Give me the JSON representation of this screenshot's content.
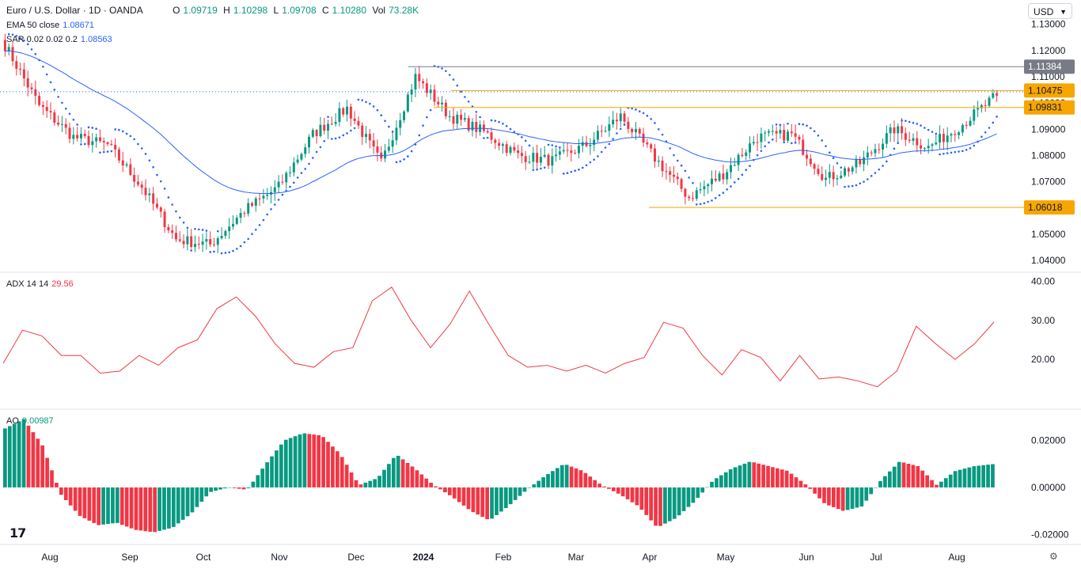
{
  "header": {
    "symbol": "Euro / U.S. Dollar · 1D · OANDA",
    "ohlc": {
      "o_label": "O",
      "o": "1.09719",
      "h_label": "H",
      "h": "1.10298",
      "l_label": "L",
      "l": "1.09708",
      "c_label": "C",
      "c": "1.10280",
      "vol_label": "Vol",
      "vol": "73.28K"
    },
    "ema": {
      "label": "EMA 50 close",
      "value": "1.08671"
    },
    "sar": {
      "label": "SAR 0.02 0.02 0.2",
      "value": "1.08563"
    },
    "currency": "USD"
  },
  "colors": {
    "up": "#089981",
    "down": "#f23645",
    "ema": "#2962ff",
    "adx": "#f23645",
    "level": "#f7a600",
    "resistance": "#787b86",
    "dotted": "#2962ff"
  },
  "chart_data": [
    {
      "type": "candlestick",
      "title": "Euro / U.S. Dollar · 1D · OANDA",
      "y_ticks": [
        "1.13000",
        "1.12000",
        "1.11000",
        "1.10000",
        "1.09000",
        "1.08000",
        "1.07000",
        "1.06000",
        "1.05000",
        "1.04000"
      ],
      "ylim": [
        1.0385,
        1.1305
      ],
      "x_ticks": [
        "Aug",
        "Sep",
        "Oct",
        "Nov",
        "Dec",
        "2024",
        "Feb",
        "Mar",
        "Apr",
        "May",
        "Jun",
        "Jul",
        "Aug"
      ],
      "levels": [
        {
          "value": 1.11384,
          "label": "1.11384",
          "color": "#787b86"
        },
        {
          "value": 1.10475,
          "label": "1.10475",
          "color": "#f7a600"
        },
        {
          "value": 1.09831,
          "label": "1.09831",
          "color": "#f7a600"
        },
        {
          "value": 1.06018,
          "label": "1.06018",
          "color": "#f7a600"
        }
      ],
      "close_anchors": [
        {
          "m": "Jul",
          "v": 1.122
        },
        {
          "m": "Aug",
          "v": 1.099
        },
        {
          "m": "mid Aug",
          "v": 1.087
        },
        {
          "m": "Sep",
          "v": 1.084
        },
        {
          "m": "mid Sep",
          "v": 1.068
        },
        {
          "m": "Oct",
          "v": 1.048
        },
        {
          "m": "early Oct",
          "v": 1.046
        },
        {
          "m": "mid Oct",
          "v": 1.059
        },
        {
          "m": "Nov",
          "v": 1.068
        },
        {
          "m": "mid Nov",
          "v": 1.088
        },
        {
          "m": "Dec",
          "v": 1.098
        },
        {
          "m": "early Dec",
          "v": 1.077
        },
        {
          "m": "late Dec",
          "v": 1.11
        },
        {
          "m": "2024",
          "v": 1.095
        },
        {
          "m": "mid Jan",
          "v": 1.089
        },
        {
          "m": "Feb",
          "v": 1.08
        },
        {
          "m": "mid Feb",
          "v": 1.078
        },
        {
          "m": "Mar",
          "v": 1.084
        },
        {
          "m": "early Mar",
          "v": 1.095
        },
        {
          "m": "Apr",
          "v": 1.079
        },
        {
          "m": "mid Apr",
          "v": 1.064
        },
        {
          "m": "May",
          "v": 1.073
        },
        {
          "m": "mid May",
          "v": 1.087
        },
        {
          "m": "Jun",
          "v": 1.088
        },
        {
          "m": "mid Jun",
          "v": 1.071
        },
        {
          "m": "Jul",
          "v": 1.077
        },
        {
          "m": "mid Jul",
          "v": 1.09
        },
        {
          "m": "late Jul",
          "v": 1.083
        },
        {
          "m": "Aug",
          "v": 1.092
        },
        {
          "m": "mid Aug",
          "v": 1.1028
        }
      ],
      "ema": {
        "name": "EMA 50 close"
      },
      "sar": {
        "name": "SAR 0.02 0.02 0.2"
      }
    },
    {
      "type": "line",
      "title": "ADX 14 14",
      "y_ticks": [
        "40.00",
        "30.00",
        "20.00"
      ],
      "ylim": [
        9.7,
        40.5
      ],
      "series": [
        {
          "name": "ADX 14 14",
          "last": "29.56",
          "values": [
            19,
            27.5,
            26,
            21,
            21,
            16.5,
            17,
            21,
            18.5,
            23,
            25,
            33,
            36,
            31,
            24,
            19,
            18,
            22,
            23,
            35,
            38.5,
            30,
            23,
            29,
            37.5,
            29,
            21,
            18,
            18.5,
            17,
            18.5,
            16.5,
            19,
            20.5,
            29.5,
            28,
            21,
            16,
            22.5,
            20.5,
            14.5,
            21,
            15,
            15.5,
            14.5,
            13,
            17,
            28.5,
            24,
            20,
            24,
            29.56
          ]
        }
      ]
    },
    {
      "type": "bar",
      "title": "AO",
      "y_ticks": [
        "0.02000",
        "0.00000",
        "-0.02000"
      ],
      "ylim": [
        -0.0215,
        0.0295
      ],
      "series": [
        {
          "name": "AO",
          "last": "0.00987",
          "values": [
            0.025,
            0.029,
            0.018,
            -0.003,
            -0.012,
            -0.016,
            -0.015,
            -0.018,
            -0.019,
            -0.017,
            -0.011,
            -0.002,
            0.0,
            -0.001,
            0.01,
            0.02,
            0.023,
            0.022,
            0.014,
            0.001,
            0.004,
            0.014,
            0.008,
            0.001,
            -0.004,
            -0.01,
            -0.014,
            -0.008,
            -0.001,
            0.005,
            0.01,
            0.007,
            0.001,
            -0.003,
            -0.008,
            -0.017,
            -0.013,
            -0.006,
            0.003,
            0.008,
            0.011,
            0.009,
            0.007,
            0.001,
            -0.007,
            -0.01,
            -0.008,
            0.003,
            0.011,
            0.009,
            0.001,
            0.007,
            0.009,
            0.00987
          ]
        }
      ]
    }
  ]
}
